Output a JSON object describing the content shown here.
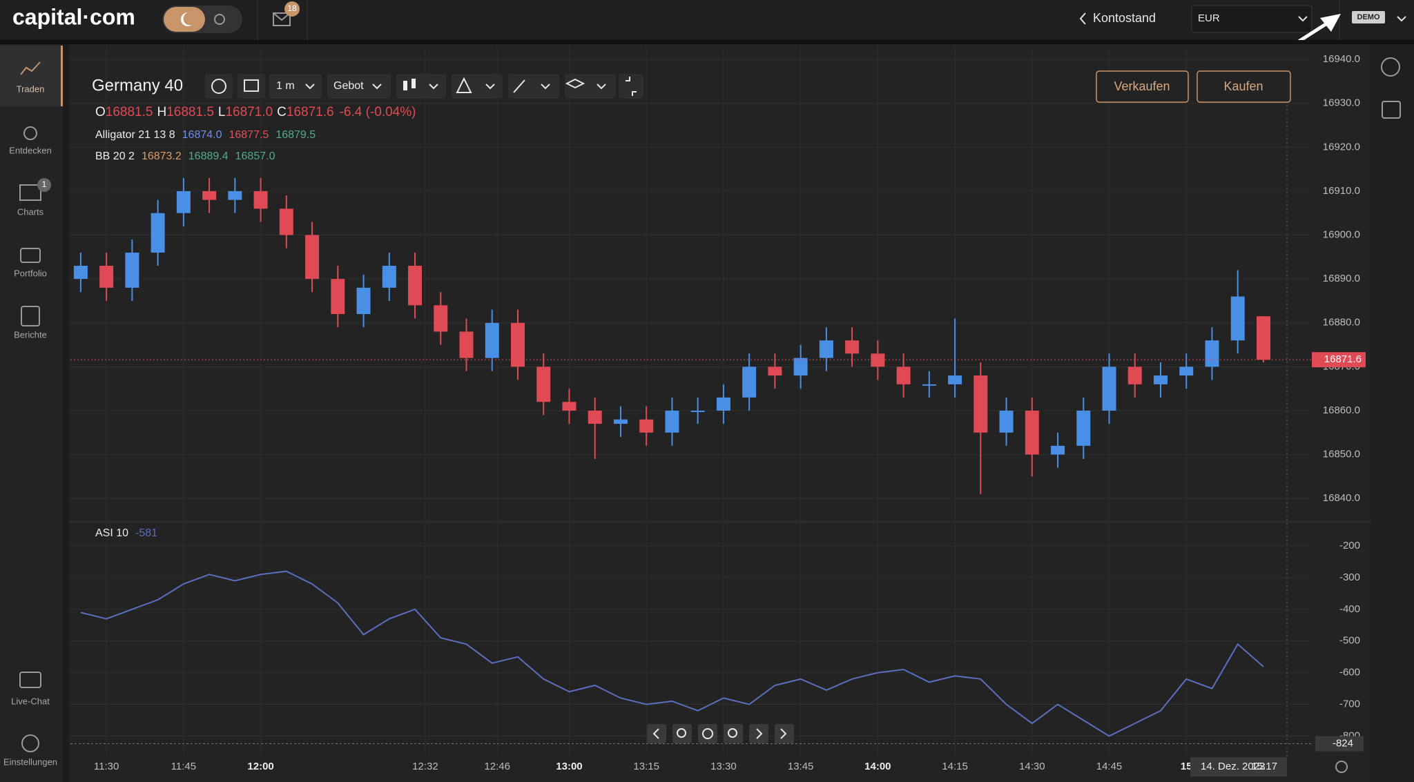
{
  "header": {
    "logo": "capital·com",
    "mail_count": "18",
    "account_label": "Kontostand",
    "currency": "EUR",
    "mode": "DEMO"
  },
  "sidebar": [
    {
      "label": "Traden"
    },
    {
      "label": "Entdecken"
    },
    {
      "label": "Charts",
      "badge": "1"
    },
    {
      "label": "Portfolio"
    },
    {
      "label": "Berichte"
    },
    {
      "label": "Live-Chat"
    },
    {
      "label": "Einstellungen"
    }
  ],
  "toolbar": {
    "timeframe": "1 m",
    "price_type": "Gebot",
    "sell": "Verkaufen",
    "buy": "Kaufen"
  },
  "chart_data": {
    "type": "candlestick",
    "title": "Germany 40",
    "ohlc": [
      {
        "label": "O",
        "value": "16881.5"
      },
      {
        "label": "H",
        "value": "16881.5"
      },
      {
        "label": "L",
        "value": "16871.0"
      },
      {
        "label": "C",
        "value": "16871.6"
      }
    ],
    "change": "-6.4 (-0.04%)",
    "indicators": [
      {
        "name": "Alligator 21 13 8",
        "values": [
          "16874.0",
          "16877.5",
          "16879.5"
        ],
        "colors": [
          "#6f8ff0",
          "#e0505f",
          "#4fae8a"
        ]
      },
      {
        "name": "BB 20 2",
        "values": [
          "16873.2",
          "16889.4",
          "16857.0"
        ],
        "colors": [
          "#e09a5c",
          "#4fae8a",
          "#4fae8a"
        ]
      }
    ],
    "up_color": "#4a8fe6",
    "down_color": "#e04a55",
    "grid": true,
    "x": [
      685,
      690,
      695,
      700,
      705,
      710,
      715,
      720,
      725,
      730,
      735,
      740,
      745,
      750,
      755,
      760,
      765,
      770,
      775,
      780,
      785,
      790,
      795,
      800,
      805,
      810,
      815,
      820,
      825,
      830,
      835,
      840,
      845,
      850,
      855,
      860,
      865,
      870,
      875,
      880,
      885,
      890,
      895,
      900,
      905,
      910,
      915
    ],
    "open": [
      16890,
      16893,
      16888,
      16896,
      16905,
      16910,
      16908,
      16910,
      16906,
      16900,
      16890,
      16882,
      16888,
      16893,
      16884,
      16878,
      16872,
      16880,
      16870,
      16862,
      16860,
      16857,
      16858,
      16855,
      16860,
      16860,
      16863,
      16870,
      16868,
      16872,
      16876,
      16873,
      16870,
      16866,
      16866,
      16868,
      16855,
      16860,
      16850,
      16852,
      16860,
      16870,
      16866,
      16868,
      16870,
      16876,
      16881.5
    ],
    "high": [
      16896,
      16896,
      16899,
      16908,
      16913,
      16913,
      16913,
      16913,
      16909,
      16903,
      16893,
      16891,
      16896,
      16896,
      16887,
      16881,
      16883,
      16883,
      16873,
      16865,
      16863,
      16861,
      16861,
      16863,
      16863,
      16866,
      16873,
      16873,
      16875,
      16879,
      16879,
      16876,
      16873,
      16869,
      16881,
      16871,
      16863,
      16863,
      16855,
      16863,
      16873,
      16873,
      16871,
      16873,
      16879,
      16892,
      16881.5
    ],
    "low": [
      16887,
      16885,
      16885,
      16893,
      16902,
      16905,
      16905,
      16903,
      16897,
      16887,
      16879,
      16879,
      16885,
      16881,
      16875,
      16869,
      16869,
      16867,
      16859,
      16857,
      16849,
      16854,
      16852,
      16852,
      16857,
      16857,
      16860,
      16865,
      16865,
      16869,
      16870,
      16867,
      16863,
      16863,
      16863,
      16841,
      16852,
      16845,
      16847,
      16849,
      16857,
      16863,
      16863,
      16865,
      16867,
      16873,
      16871.0
    ],
    "close": [
      16893,
      16888,
      16896,
      16905,
      16910,
      16908,
      16910,
      16906,
      16900,
      16890,
      16882,
      16888,
      16893,
      16884,
      16878,
      16872,
      16880,
      16870,
      16862,
      16860,
      16857,
      16858,
      16855,
      16860,
      16860,
      16863,
      16870,
      16868,
      16872,
      16876,
      16873,
      16870,
      16866,
      16866,
      16868,
      16855,
      16860,
      16850,
      16852,
      16860,
      16870,
      16866,
      16868,
      16870,
      16876,
      16886,
      16871.6
    ],
    "xlim": [
      683,
      924
    ],
    "xticks": [
      {
        "value": 690,
        "label": "11:30"
      },
      {
        "value": 705,
        "label": "11:45"
      },
      {
        "value": 720,
        "label": "12:00",
        "major": true
      },
      {
        "value": 752,
        "label": "12:32"
      },
      {
        "value": 766,
        "label": "12:46"
      },
      {
        "value": 780,
        "label": "13:00",
        "major": true
      },
      {
        "value": 795,
        "label": "13:15"
      },
      {
        "value": 810,
        "label": "13:30"
      },
      {
        "value": 825,
        "label": "13:45"
      },
      {
        "value": 840,
        "label": "14:00",
        "major": true
      },
      {
        "value": 855,
        "label": "14:15"
      },
      {
        "value": 870,
        "label": "14:30"
      },
      {
        "value": 885,
        "label": "14:45"
      },
      {
        "value": 900,
        "label": "15",
        "major": true
      }
    ],
    "ylim": [
      16835,
      16943
    ],
    "yticks": [
      {
        "value": 16840,
        "label": "16840.0"
      },
      {
        "value": 16850,
        "label": "16850.0"
      },
      {
        "value": 16860,
        "label": "16860.0"
      },
      {
        "value": 16870,
        "label": "16870.0"
      },
      {
        "value": 16880,
        "label": "16880.0"
      },
      {
        "value": 16890,
        "label": "16890.0"
      },
      {
        "value": 16900,
        "label": "16900.0"
      },
      {
        "value": 16910,
        "label": "16910.0"
      },
      {
        "value": 16920,
        "label": "16920.0"
      },
      {
        "value": 16930,
        "label": "16930.0"
      },
      {
        "value": 16940,
        "label": "16940.0"
      }
    ],
    "asi": {
      "name": "ASI 10",
      "color": "#5b6fc0",
      "values": [
        -410,
        -430,
        -400,
        -370,
        -320,
        -290,
        -310,
        -290,
        -280,
        -320,
        -380,
        -480,
        -430,
        -400,
        -490,
        -510,
        -570,
        -550,
        -620,
        -660,
        -640,
        -680,
        -700,
        -690,
        -720,
        -680,
        -700,
        -640,
        -620,
        -655,
        -620,
        -600,
        -590,
        -630,
        -610,
        -620,
        -700,
        -760,
        -700,
        -750,
        -800,
        -760,
        -720,
        -620,
        -650,
        -510,
        -581
      ],
      "ylim": [
        -860,
        -126
      ],
      "yticks": [
        -200,
        -300,
        -400,
        -500,
        -600,
        -700,
        -800
      ],
      "cursor_value": -824
    },
    "date_label": "14. Dez. 2023",
    "time_label": "15:17"
  }
}
